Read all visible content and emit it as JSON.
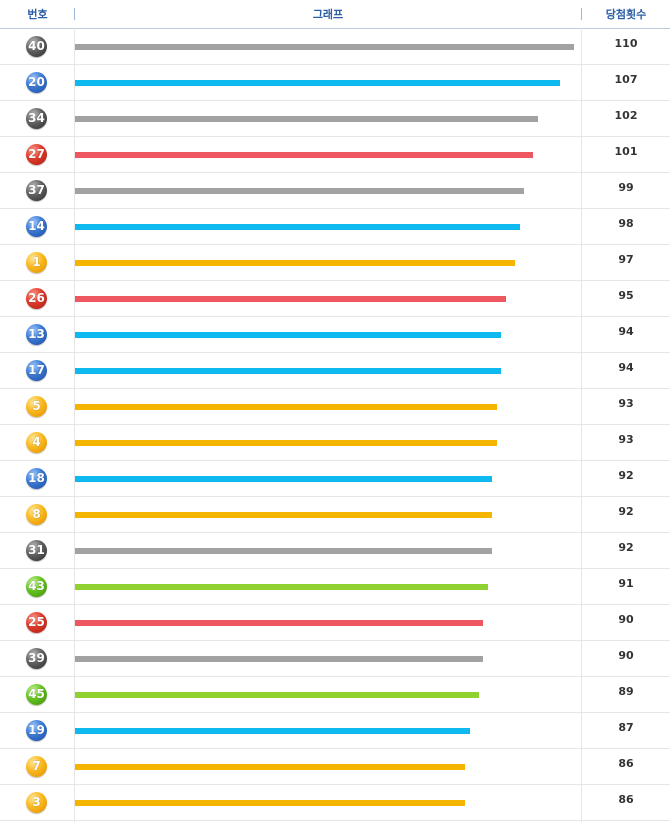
{
  "header": {
    "number": "번호",
    "graph": "그래프",
    "count": "당첨횟수"
  },
  "colors": {
    "yellow": "#f5b400",
    "blue": "#0db9ee",
    "red": "#ef5760",
    "gray": "#a2a2a2",
    "green": "#8fd131"
  },
  "chart_data": {
    "type": "bar",
    "orientation": "horizontal",
    "xlim": [
      0,
      110
    ],
    "rows": [
      {
        "number": "40",
        "count": 110,
        "color": "gray"
      },
      {
        "number": "20",
        "count": 107,
        "color": "blue"
      },
      {
        "number": "34",
        "count": 102,
        "color": "gray"
      },
      {
        "number": "27",
        "count": 101,
        "color": "red"
      },
      {
        "number": "37",
        "count": 99,
        "color": "gray"
      },
      {
        "number": "14",
        "count": 98,
        "color": "blue"
      },
      {
        "number": "1",
        "count": 97,
        "color": "yellow"
      },
      {
        "number": "26",
        "count": 95,
        "color": "red"
      },
      {
        "number": "13",
        "count": 94,
        "color": "blue"
      },
      {
        "number": "17",
        "count": 94,
        "color": "blue"
      },
      {
        "number": "5",
        "count": 93,
        "color": "yellow"
      },
      {
        "number": "4",
        "count": 93,
        "color": "yellow"
      },
      {
        "number": "18",
        "count": 92,
        "color": "blue"
      },
      {
        "number": "8",
        "count": 92,
        "color": "yellow"
      },
      {
        "number": "31",
        "count": 92,
        "color": "gray"
      },
      {
        "number": "43",
        "count": 91,
        "color": "green"
      },
      {
        "number": "25",
        "count": 90,
        "color": "red"
      },
      {
        "number": "39",
        "count": 90,
        "color": "gray"
      },
      {
        "number": "45",
        "count": 89,
        "color": "green"
      },
      {
        "number": "19",
        "count": 87,
        "color": "blue"
      },
      {
        "number": "7",
        "count": 86,
        "color": "yellow"
      },
      {
        "number": "3",
        "count": 86,
        "color": "yellow"
      }
    ]
  }
}
